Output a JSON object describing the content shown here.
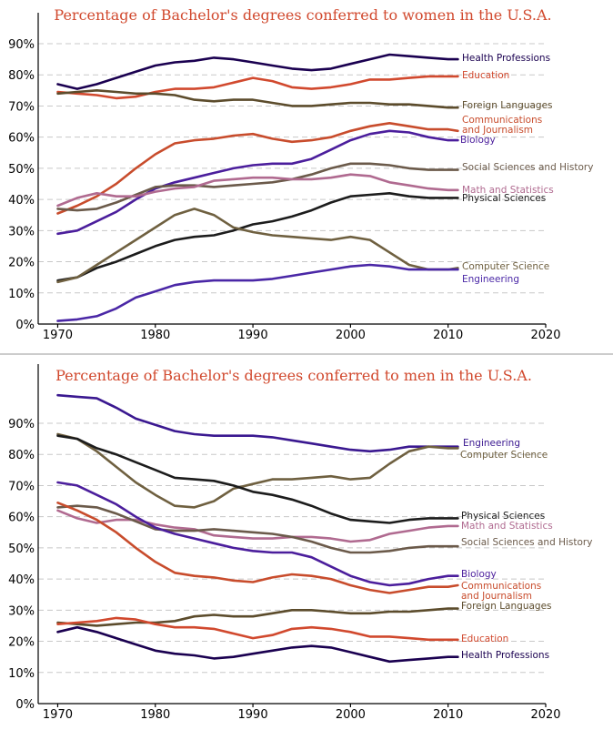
{
  "chart_data": [
    {
      "type": "line",
      "title": "Percentage of Bachelor's degrees conferred to women in the U.S.A.",
      "x": [
        1970,
        1972,
        1974,
        1976,
        1978,
        1980,
        1982,
        1984,
        1986,
        1988,
        1990,
        1992,
        1994,
        1996,
        1998,
        2000,
        2002,
        2004,
        2006,
        2008,
        2010,
        2011
      ],
      "xlim": [
        1968,
        2020
      ],
      "ylim": [
        0,
        90
      ],
      "xticks": [
        "1970",
        "1980",
        "1990",
        "2000",
        "2010",
        "2020"
      ],
      "yticks": [
        "0%",
        "10%",
        "20%",
        "30%",
        "40%",
        "50%",
        "60%",
        "70%",
        "80%",
        "90%"
      ],
      "grid": true,
      "legend": "labels at line ends (right)",
      "series": [
        {
          "name": "Health Professions",
          "color": "#1a0050",
          "values": [
            77,
            75.5,
            77,
            79,
            81,
            83,
            84,
            84.5,
            85.5,
            85,
            84,
            83,
            82,
            81.5,
            82,
            83.5,
            85,
            86.5,
            86,
            85.5,
            85,
            85
          ]
        },
        {
          "name": "Education",
          "color": "#d1492e",
          "values": [
            74.5,
            74,
            73.5,
            72.5,
            73,
            74.5,
            75.5,
            75.5,
            76,
            77.5,
            79,
            78,
            76,
            75.5,
            76,
            77,
            78.5,
            78.5,
            79,
            79.5,
            79.5,
            79.5
          ]
        },
        {
          "name": "Foreign Languages",
          "color": "#5c4c2c",
          "values": [
            74,
            74.5,
            75,
            74.5,
            74,
            74,
            73.5,
            72,
            71.5,
            72,
            72,
            71,
            70,
            70,
            70.5,
            71,
            71,
            70.5,
            70.5,
            70,
            69.5,
            69.5
          ]
        },
        {
          "name": "Communications and Journalism",
          "color": "#c84c2c",
          "values": [
            35.5,
            38,
            41,
            45,
            50,
            54.5,
            58,
            59,
            59.5,
            60.5,
            61,
            59.5,
            58.5,
            59,
            60,
            62,
            63.5,
            64.5,
            63.5,
            62.5,
            62.5,
            62
          ]
        },
        {
          "name": "Biology",
          "color": "#4b1e9c",
          "values": [
            29,
            30,
            33,
            36,
            40,
            43.5,
            45.5,
            47,
            48.5,
            50,
            51,
            51.5,
            51.5,
            53,
            56,
            59,
            61,
            62,
            61.5,
            60,
            59,
            59
          ]
        },
        {
          "name": "Social Sciences and History",
          "color": "#6b5a4a",
          "values": [
            37,
            36.5,
            37,
            39,
            41.5,
            44,
            44.5,
            44.5,
            44,
            44.5,
            45,
            45.5,
            46.5,
            48,
            50,
            51.5,
            51.5,
            51,
            50,
            49.5,
            49.5,
            49.5
          ]
        },
        {
          "name": "Math and Statistics",
          "color": "#b06a90",
          "values": [
            38,
            40.5,
            42,
            41,
            41,
            42.5,
            43.5,
            44,
            46,
            46.5,
            47,
            47,
            46.5,
            46.5,
            47,
            48,
            47.5,
            45.5,
            44.5,
            43.5,
            43,
            43
          ]
        },
        {
          "name": "Physical Sciences",
          "color": "#1c1c1c",
          "values": [
            14,
            15,
            18,
            20,
            22.5,
            25,
            27,
            28,
            28.5,
            30,
            32,
            33,
            34.5,
            36.5,
            39,
            41,
            41.5,
            42,
            41,
            40.5,
            40.5,
            40.5
          ]
        },
        {
          "name": "Computer Science",
          "color": "#6f6040",
          "values": [
            13.5,
            15,
            19,
            23,
            27,
            31,
            35,
            37,
            35,
            31,
            29.5,
            28.5,
            28,
            27.5,
            27,
            28,
            27,
            23,
            19,
            17.5,
            17.5,
            18
          ]
        },
        {
          "name": "Engineering",
          "color": "#4a27a6",
          "values": [
            1,
            1.5,
            2.5,
            5,
            8.5,
            10.5,
            12.5,
            13.5,
            14,
            14,
            14,
            14.5,
            15.5,
            16.5,
            17.5,
            18.5,
            19,
            18.5,
            17.5,
            17.5,
            17.5,
            17.5
          ]
        }
      ]
    },
    {
      "type": "line",
      "title": "Percentage of Bachelor's degrees conferred to men in the U.S.A.",
      "x": [
        1970,
        1972,
        1974,
        1976,
        1978,
        1980,
        1982,
        1984,
        1986,
        1988,
        1990,
        1992,
        1994,
        1996,
        1998,
        2000,
        2002,
        2004,
        2006,
        2008,
        2010,
        2011
      ],
      "xlim": [
        1968,
        2020
      ],
      "ylim": [
        0,
        100
      ],
      "xticks": [
        "1970",
        "1980",
        "1990",
        "2000",
        "2010",
        "2020"
      ],
      "yticks": [
        "0%",
        "10%",
        "20%",
        "30%",
        "40%",
        "50%",
        "60%",
        "70%",
        "80%",
        "90%"
      ],
      "grid": true,
      "legend": "labels at line ends (right)",
      "series": [
        {
          "name": "Engineering",
          "color": "#3a1890",
          "values": [
            99,
            98.5,
            98,
            95,
            91.5,
            89.5,
            87.5,
            86.5,
            86,
            86,
            86,
            85.5,
            84.5,
            83.5,
            82.5,
            81.5,
            81,
            81.5,
            82.5,
            82.5,
            82.5,
            82.5
          ]
        },
        {
          "name": "Computer Science",
          "color": "#6f6040",
          "values": [
            86.5,
            85,
            81,
            76,
            71,
            67,
            63.5,
            63,
            65,
            69,
            70.5,
            72,
            72,
            72.5,
            73,
            72,
            72.5,
            77,
            81,
            82.5,
            82,
            82
          ]
        },
        {
          "name": "Physical Sciences",
          "color": "#1c1c1c",
          "values": [
            86,
            85,
            82,
            80,
            77.5,
            75,
            72.5,
            72,
            71.5,
            70,
            68,
            67,
            65.5,
            63.5,
            61,
            59,
            58.5,
            58,
            59,
            59.5,
            59.5,
            59.5
          ]
        },
        {
          "name": "Math and Statistics",
          "color": "#b06a90",
          "values": [
            62,
            59.5,
            58,
            59,
            59,
            57.5,
            56.5,
            56,
            54,
            53.5,
            53,
            53,
            53.5,
            53.5,
            53,
            52,
            52.5,
            54.5,
            55.5,
            56.5,
            57,
            57
          ]
        },
        {
          "name": "Social Sciences and History",
          "color": "#6b5a4a",
          "values": [
            63,
            63.5,
            63,
            61,
            58.5,
            56,
            55.5,
            55.5,
            56,
            55.5,
            55,
            54.5,
            53.5,
            52,
            50,
            48.5,
            48.5,
            49,
            50,
            50.5,
            50.5,
            50.5
          ]
        },
        {
          "name": "Biology",
          "color": "#4b1e9c",
          "values": [
            71,
            70,
            67,
            64,
            60,
            56.5,
            54.5,
            53,
            51.5,
            50,
            49,
            48.5,
            48.5,
            47,
            44,
            41,
            39,
            38,
            38.5,
            40,
            41,
            41
          ]
        },
        {
          "name": "Communications and Journalism",
          "color": "#c84c2c",
          "values": [
            64.5,
            62,
            59,
            55,
            50,
            45.5,
            42,
            41,
            40.5,
            39.5,
            39,
            40.5,
            41.5,
            41,
            40,
            38,
            36.5,
            35.5,
            36.5,
            37.5,
            37.5,
            38
          ]
        },
        {
          "name": "Foreign Languages",
          "color": "#5c4c2c",
          "values": [
            26,
            25.5,
            25,
            25.5,
            26,
            26,
            26.5,
            28,
            28.5,
            28,
            28,
            29,
            30,
            30,
            29.5,
            29,
            29,
            29.5,
            29.5,
            30,
            30.5,
            30.5
          ]
        },
        {
          "name": "Education",
          "color": "#d1492e",
          "values": [
            25.5,
            26,
            26.5,
            27.5,
            27,
            25.5,
            24.5,
            24.5,
            24,
            22.5,
            21,
            22,
            24,
            24.5,
            24,
            23,
            21.5,
            21.5,
            21,
            20.5,
            20.5,
            20.5
          ]
        },
        {
          "name": "Health Professions",
          "color": "#1a0050",
          "values": [
            23,
            24.5,
            23,
            21,
            19,
            17,
            16,
            15.5,
            14.5,
            15,
            16,
            17,
            18,
            18.5,
            18,
            16.5,
            15,
            13.5,
            14,
            14.5,
            15,
            15
          ]
        }
      ]
    }
  ]
}
